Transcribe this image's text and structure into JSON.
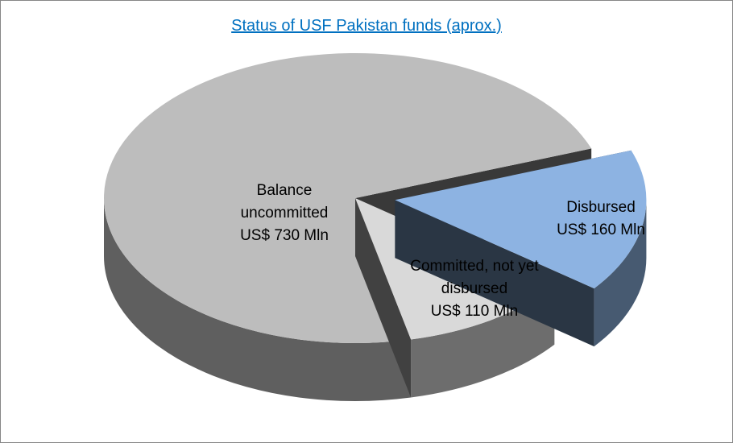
{
  "chart_data": {
    "type": "pie",
    "title": "Status of USF Pakistan funds (aprox.)",
    "categories": [
      "Disbursed",
      "Committed, not yet disbursed",
      "Balance uncommitted"
    ],
    "values": [
      160,
      110,
      730
    ],
    "value_labels": [
      "US$ 160 Mln",
      "US$ 110 Mln",
      "US$ 730 Mln"
    ],
    "colors": [
      "#8db3e2",
      "#d9d9d9",
      "#bdbdbd"
    ],
    "explode": [
      1,
      0,
      0
    ]
  }
}
